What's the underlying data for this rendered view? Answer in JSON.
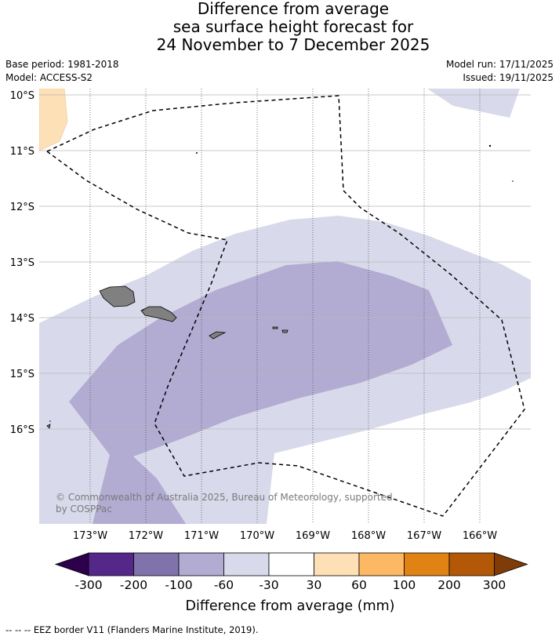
{
  "title": {
    "line1": "Difference from average",
    "line2": "sea surface height forecast for",
    "line3": "24 November to 7 December 2025"
  },
  "meta": {
    "base_period": "Base period: 1981-2018",
    "model": "Model: ACCESS-S2",
    "model_run": "Model run: 17/11/2025",
    "issued": "Issued: 19/11/2025"
  },
  "map": {
    "lat_labels": [
      "10°S",
      "11°S",
      "12°S",
      "13°S",
      "14°S",
      "15°S",
      "16°S"
    ],
    "lon_labels": [
      "173°W",
      "172°W",
      "171°W",
      "170°W",
      "169°W",
      "168°W",
      "167°W",
      "166°W"
    ],
    "copyright_line1": "© Commonwealth of Australia 2025, Bureau of Meteorology, supported",
    "copyright_line2": "by COSPPac"
  },
  "colorbar": {
    "tick_labels": [
      "-300",
      "-200",
      "-100",
      "-60",
      "-30",
      "30",
      "60",
      "100",
      "200",
      "300"
    ],
    "colors": [
      "#2d004b",
      "#542788",
      "#8073ac",
      "#b2abd2",
      "#d8daeb",
      "#ffffff",
      "#fee0b6",
      "#fdb863",
      "#e08214",
      "#b35806",
      "#7f3b08"
    ],
    "label": "Difference from average (mm)"
  },
  "legend": {
    "eez": "--  --  -- EEZ border V11 (Flanders Marine Institute, 2019)."
  }
}
